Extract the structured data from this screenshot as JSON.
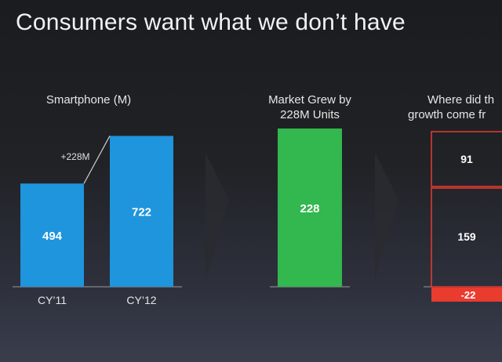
{
  "title": "Consumers want what we don’t have",
  "colors": {
    "blue": "#1e95dc",
    "green": "#33b74f",
    "red": "#ea3b2f",
    "white": "#ffffff",
    "arrow": "#2a2c30"
  },
  "chart_data": [
    {
      "type": "bar",
      "title": "Smartphone (M)",
      "categories": [
        "CY’11",
        "CY’12"
      ],
      "values": [
        494,
        722
      ],
      "value_labels": [
        "494",
        "722"
      ],
      "annotation": "+228M",
      "ylim": [
        0,
        800
      ]
    },
    {
      "type": "bar",
      "title": "Market Grew by",
      "subtitle": "228M Units",
      "categories": [
        ""
      ],
      "values": [
        228
      ],
      "value_labels": [
        "228"
      ],
      "ylim": [
        0,
        800
      ]
    },
    {
      "type": "bar",
      "title": "Where did th",
      "subtitle": "growth come fr",
      "stacked": true,
      "segments": [
        {
          "value": 91,
          "label": "91"
        },
        {
          "value": 159,
          "label": "159"
        },
        {
          "value": -22,
          "label": "-22"
        }
      ],
      "ylim": [
        0,
        800
      ]
    }
  ]
}
